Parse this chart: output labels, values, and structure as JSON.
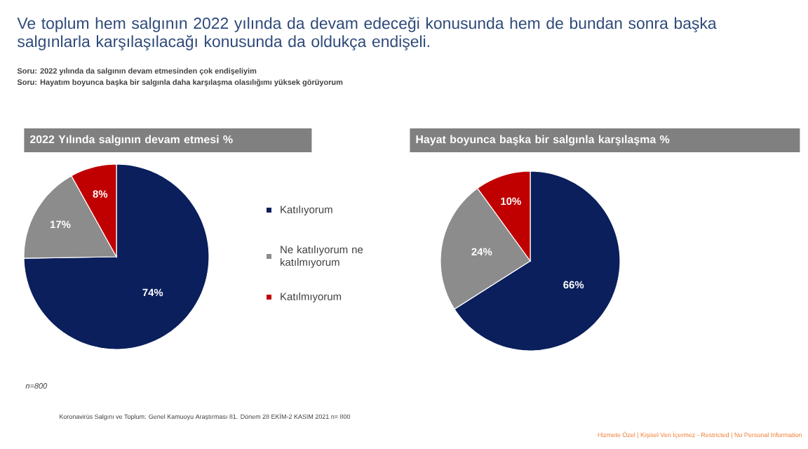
{
  "chart_data": [
    {
      "type": "pie",
      "title": "2022 Yılında salgının devam etmesi %",
      "categories": [
        "Katılıyorum",
        "Ne katılıyorum ne katılmıyorum",
        "Katılmıyorum"
      ],
      "values": [
        74,
        17,
        8
      ],
      "value_labels": [
        "74%",
        "17%",
        "8%"
      ],
      "colors": [
        "#0a1f5c",
        "#8c8c8c",
        "#c00000"
      ],
      "legend": "right",
      "annotations": [
        "Ve toplum hem salgının 2022 yılında da devam edeceği konusunda hem de bundan sonra başka salgınlarla karşılaşılacağı konusunda da oldukça endişeli.",
        "Soru: 2022 yılında da salgının devam etmesinden çok endişeliyim",
        "Soru: Hayatım boyunca başka bir salgınla daha karşılaşma olasılığımı  yüksek görüyorum",
        "n=800",
        "Koronavirüs  Salgını ve Toplum:  Genel Kamuoyu Araştırması 81. Dönem  28 EKİM-2 KASIM  2021   n= 800",
        "Hizmete Özel | Kişisel Veri İçermez - Restricted | No Personal Information"
      ]
    },
    {
      "type": "pie",
      "title": "Hayat boyunca başka bir salgınla karşılaşma %",
      "categories": [
        null,
        null,
        null
      ],
      "values": [
        66,
        24,
        10
      ],
      "value_labels": [
        "66%",
        "24%",
        "10%"
      ],
      "colors": [
        "#0a1f5c",
        "#8c8c8c",
        "#c00000"
      ]
    }
  ]
}
